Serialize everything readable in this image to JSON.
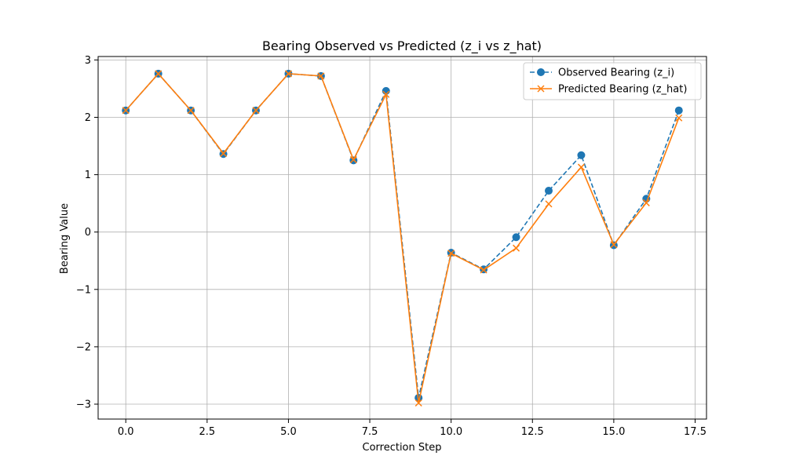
{
  "chart_data": {
    "type": "line",
    "title": "Bearing Observed vs Predicted (z_i vs z_hat)",
    "xlabel": "Correction Step",
    "ylabel": "Bearing Value",
    "x": [
      0,
      1,
      2,
      3,
      4,
      5,
      6,
      7,
      8,
      9,
      10,
      11,
      12,
      13,
      14,
      15,
      16,
      17
    ],
    "xlim": [
      -0.85,
      17.85
    ],
    "ylim": [
      -3.26,
      3.06
    ],
    "xticks": [
      0.0,
      2.5,
      5.0,
      7.5,
      10.0,
      12.5,
      15.0,
      17.5
    ],
    "xtick_labels": [
      "0.0",
      "2.5",
      "5.0",
      "7.5",
      "10.0",
      "12.5",
      "15.0",
      "17.5"
    ],
    "yticks": [
      -3,
      -2,
      -1,
      0,
      1,
      2,
      3
    ],
    "ytick_labels": [
      "−3",
      "−2",
      "−1",
      "0",
      "1",
      "2",
      "3"
    ],
    "grid": true,
    "legend_position": "top-right",
    "series": [
      {
        "name": "Observed Bearing (z_i)",
        "color": "#1f77b4",
        "line_style": "dashed",
        "marker": "circle",
        "values": [
          2.12,
          2.76,
          2.12,
          1.36,
          2.12,
          2.76,
          2.72,
          1.25,
          2.46,
          -2.89,
          -0.36,
          -0.65,
          -0.09,
          0.72,
          1.34,
          -0.23,
          0.58,
          2.12
        ]
      },
      {
        "name": "Predicted Bearing (z_hat)",
        "color": "#ff7f0e",
        "line_style": "solid",
        "marker": "x",
        "values": [
          2.12,
          2.76,
          2.12,
          1.37,
          2.12,
          2.76,
          2.72,
          1.26,
          2.4,
          -2.98,
          -0.37,
          -0.66,
          -0.28,
          0.49,
          1.13,
          -0.22,
          0.51,
          1.99
        ]
      }
    ]
  }
}
